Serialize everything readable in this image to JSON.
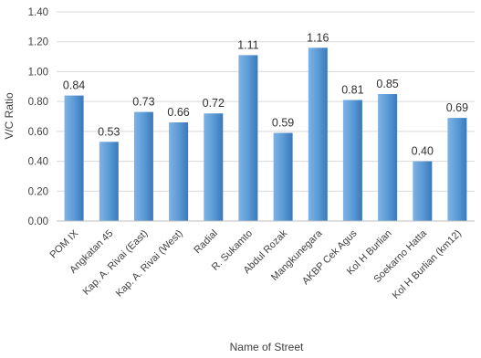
{
  "chart_data": {
    "type": "bar",
    "title": "",
    "xlabel": "Name of Street",
    "ylabel": "V/C Ratio",
    "ylim": [
      0,
      1.4
    ],
    "ytick_step": 0.2,
    "yticks": [
      "0.00",
      "0.20",
      "0.40",
      "0.60",
      "0.80",
      "1.00",
      "1.20",
      "1.40"
    ],
    "grid": true,
    "legend": "none",
    "categories": [
      "POM IX",
      "Angkatan 45",
      "Kap. A. Rivai (East)",
      "Kap. A. Rivai (West)",
      "Radial",
      "R. Sukamto",
      "Abdul Rozak",
      "Mangkunegara",
      "AKBP Cek Agus",
      "Kol H Burlian",
      "Soekarno Hatta",
      "Kol H Burlian (km12)"
    ],
    "values": [
      0.84,
      0.53,
      0.73,
      0.66,
      0.72,
      1.11,
      0.59,
      1.16,
      0.81,
      0.85,
      0.4,
      0.69
    ],
    "data_labels": [
      "0.84",
      "0.53",
      "0.73",
      "0.66",
      "0.72",
      "1.11",
      "0.59",
      "1.16",
      "0.81",
      "0.85",
      "0.40",
      "0.69"
    ],
    "colors": {
      "bar_light": "#7fb2e5",
      "bar_mid": "#5b9bd5",
      "bar_dark": "#3a78bd",
      "gridline": "#d9d9d9",
      "axis": "#bfbfbf"
    }
  }
}
